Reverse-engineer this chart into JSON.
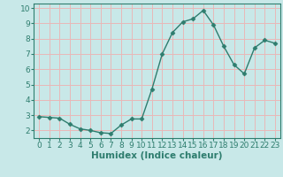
{
  "x": [
    0,
    1,
    2,
    3,
    4,
    5,
    6,
    7,
    8,
    9,
    10,
    11,
    12,
    13,
    14,
    15,
    16,
    17,
    18,
    19,
    20,
    21,
    22,
    23
  ],
  "y": [
    2.9,
    2.85,
    2.8,
    2.4,
    2.1,
    2.0,
    1.85,
    1.8,
    2.35,
    2.75,
    2.75,
    4.7,
    7.0,
    8.4,
    9.1,
    9.3,
    9.85,
    8.9,
    7.5,
    6.3,
    5.7,
    7.4,
    7.9,
    7.7
  ],
  "line_color": "#2e7d6e",
  "marker": "D",
  "marker_size": 2.5,
  "bg_color": "#c8e8e8",
  "grid_color": "#e8b8b8",
  "xlabel": "Humidex (Indice chaleur)",
  "xlim": [
    -0.5,
    23.5
  ],
  "ylim": [
    1.5,
    10.3
  ],
  "yticks": [
    2,
    3,
    4,
    5,
    6,
    7,
    8,
    9,
    10
  ],
  "xticks": [
    0,
    1,
    2,
    3,
    4,
    5,
    6,
    7,
    8,
    9,
    10,
    11,
    12,
    13,
    14,
    15,
    16,
    17,
    18,
    19,
    20,
    21,
    22,
    23
  ],
  "tick_fontsize": 6.5,
  "xlabel_fontsize": 7.5
}
